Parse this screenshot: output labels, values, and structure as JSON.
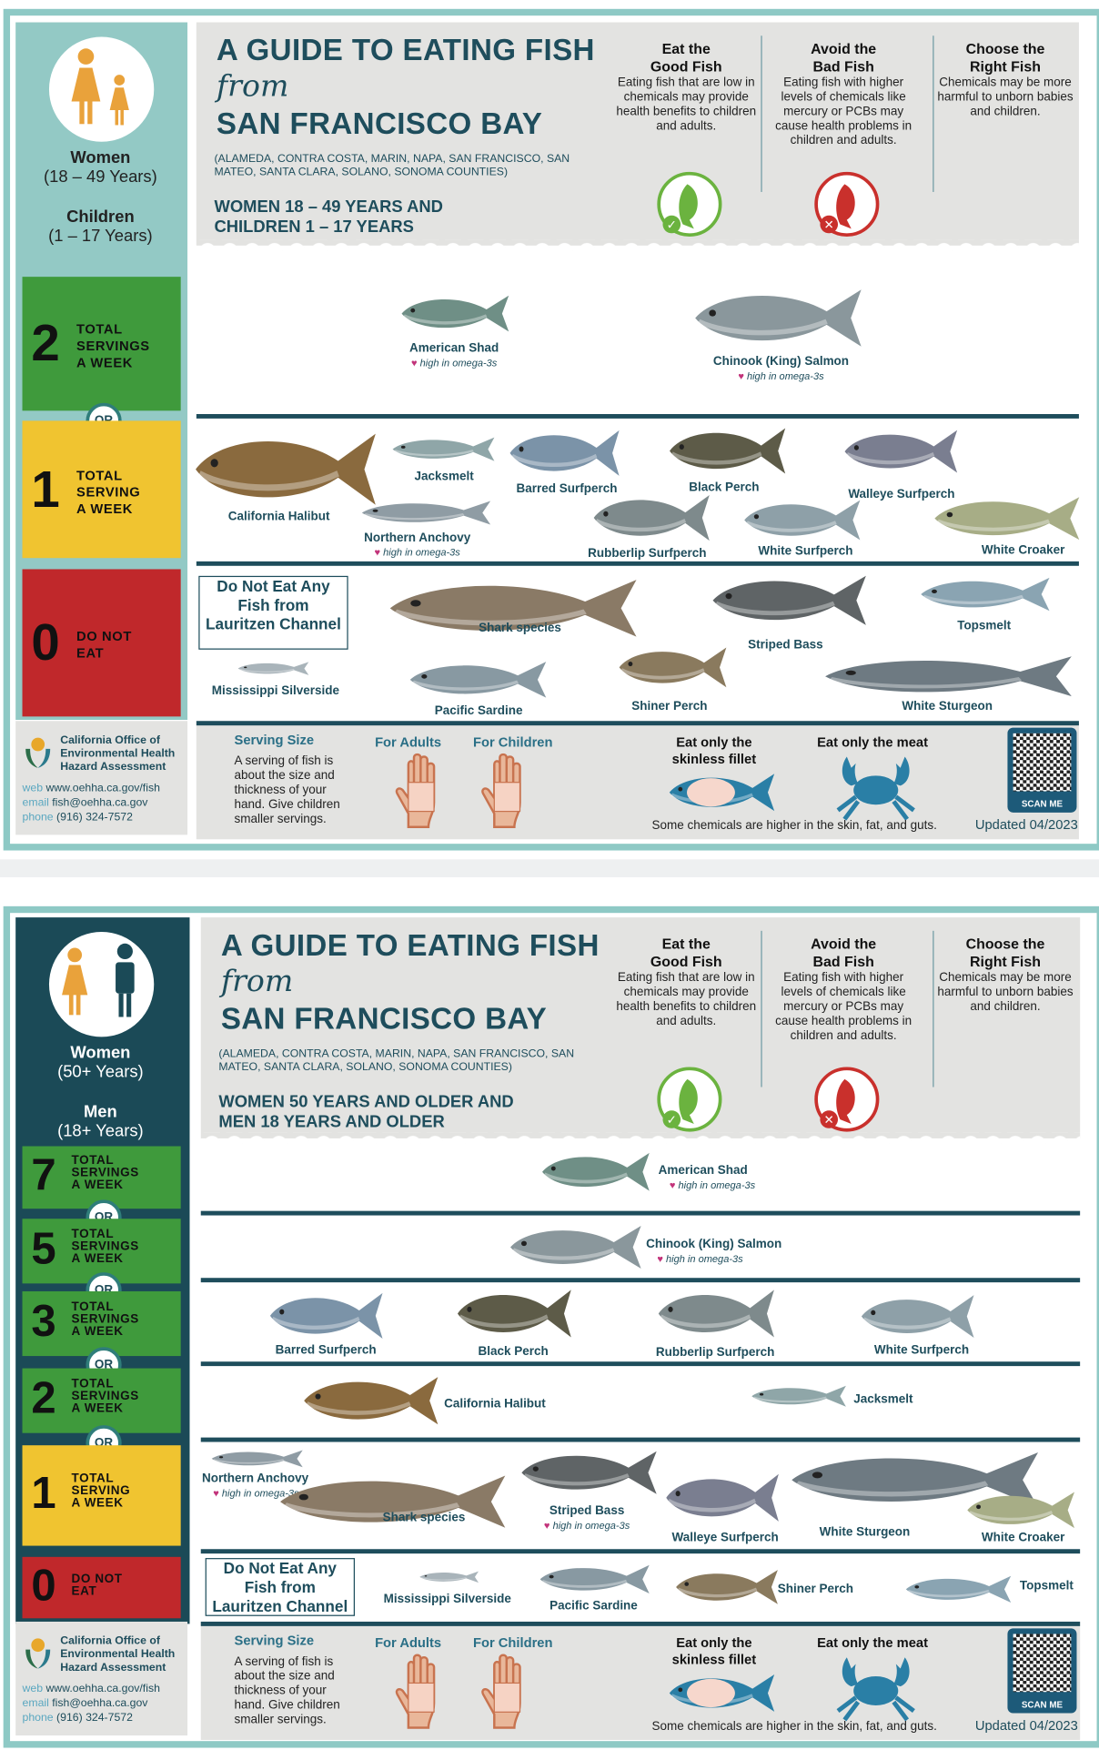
{
  "colors": {
    "teal_frame": "#8ec9c5",
    "navy": "#1e4d5c",
    "green": "#3f9a3c",
    "yellow": "#f0c430",
    "red": "#c0282b",
    "gray": "#e3e3e1"
  },
  "header": {
    "title1": "A GUIDE TO EATING FISH",
    "title2": "from",
    "title3": "SAN FRANCISCO BAY",
    "counties": "(ALAMEDA, CONTRA COSTA, MARIN, NAPA, SAN FRANCISCO, SAN MATEO, SANTA CLARA, SOLANO, SONOMA COUNTIES)",
    "cols": [
      {
        "h1": "Eat the",
        "h2": "Good Fish",
        "text": "Eating fish that are low in chemicals may provide health benefits to children and adults.",
        "icon": "good-fish-check-icon"
      },
      {
        "h1": "Avoid the",
        "h2": "Bad Fish",
        "text": "Eating fish with higher levels of chemicals like mercury or PCBs may cause health problems in children and adults.",
        "icon": "bad-fish-x-icon"
      },
      {
        "h1": "Choose the",
        "h2": "Right Fish",
        "text": "Chemicals may be more harmful to unborn babies and children."
      }
    ]
  },
  "footer": {
    "org1": "California Office of",
    "org2": "Environmental Health",
    "org3": "Hazard Assessment",
    "web_label": "web",
    "web": "www.oehha.ca.gov/fish",
    "email_label": "email",
    "email": "fish@oehha.ca.gov",
    "phone_label": "phone",
    "phone": "(916) 324-7572",
    "serving_title": "Serving Size",
    "serving_text": "A serving of fish is about the size and thickness of your hand. Give children smaller servings.",
    "adults": "For Adults",
    "children": "For Children",
    "fillet1": "Eat only the",
    "fillet2": "skinless fillet",
    "meat": "Eat only the meat",
    "note": "Some chemicals are higher in the skin, fat, and guts.",
    "scan": "SCAN ME",
    "updated": "Updated 04/2023"
  },
  "omega": "high in omega-3s",
  "do_not_eat": [
    "Do Not Eat Any",
    "Fish from",
    "Lauritzen Channel"
  ],
  "or": "OR",
  "panels": [
    {
      "group1": "Women",
      "group1_age": "(18 – 49 Years)",
      "group2": "Children",
      "group2_age": "(1 – 17 Years)",
      "who1": "WOMEN 18 – 49 YEARS AND",
      "who2": "CHILDREN 1 – 17 YEARS",
      "servings": [
        {
          "n": "2",
          "l1": "TOTAL",
          "l2": "SERVINGS",
          "l3": "A WEEK",
          "color": "#3f9a3c"
        },
        {
          "n": "1",
          "l1": "TOTAL",
          "l2": "SERVING",
          "l3": "A WEEK",
          "color": "#f0c430"
        },
        {
          "n": "0",
          "l1": "DO NOT",
          "l2": "EAT",
          "l3": "",
          "color": "#c0282b"
        }
      ],
      "fish": [
        {
          "name": "American Shad",
          "omega": true,
          "color": "#6f8f86"
        },
        {
          "name": "Chinook (King) Salmon",
          "omega": true,
          "color": "#8a979c"
        },
        {
          "name": "California Halibut",
          "color": "#8a6a3e"
        },
        {
          "name": "Jacksmelt",
          "color": "#8fa6a8"
        },
        {
          "name": "Northern Anchovy",
          "omega": true,
          "color": "#8f9ca4"
        },
        {
          "name": "Barred Surfperch",
          "color": "#7b93a8"
        },
        {
          "name": "Rubberlip Surfperch",
          "color": "#7e8a8c"
        },
        {
          "name": "Black Perch",
          "color": "#5d5b48"
        },
        {
          "name": "White Surfperch",
          "color": "#8ea0a8"
        },
        {
          "name": "Walleye Surfperch",
          "color": "#7a7e90"
        },
        {
          "name": "White Croaker",
          "color": "#a7ad86"
        },
        {
          "name": "Mississippi Silverside",
          "color": "#a9b4ba"
        },
        {
          "name": "Shark species",
          "color": "#8a7a66"
        },
        {
          "name": "Pacific Sardine",
          "color": "#8899a2"
        },
        {
          "name": "Striped Bass",
          "color": "#5f6466"
        },
        {
          "name": "Shiner Perch",
          "color": "#8a7a5e"
        },
        {
          "name": "Topsmelt",
          "color": "#8aa4b2"
        },
        {
          "name": "White Sturgeon",
          "color": "#6e7a82"
        }
      ]
    },
    {
      "group1": "Women",
      "group1_age": "(50+ Years)",
      "group2": "Men",
      "group2_age": "(18+ Years)",
      "who1": "WOMEN 50 YEARS AND OLDER AND",
      "who2": "MEN 18 YEARS AND OLDER",
      "servings": [
        {
          "n": "7",
          "l1": "TOTAL",
          "l2": "SERVINGS",
          "l3": "A WEEK",
          "color": "#3f9a3c"
        },
        {
          "n": "5",
          "l1": "TOTAL",
          "l2": "SERVINGS",
          "l3": "A WEEK",
          "color": "#3f9a3c"
        },
        {
          "n": "3",
          "l1": "TOTAL",
          "l2": "SERVINGS",
          "l3": "A WEEK",
          "color": "#3f9a3c"
        },
        {
          "n": "2",
          "l1": "TOTAL",
          "l2": "SERVINGS",
          "l3": "A WEEK",
          "color": "#3f9a3c"
        },
        {
          "n": "1",
          "l1": "TOTAL",
          "l2": "SERVING",
          "l3": "A WEEK",
          "color": "#f0c430"
        },
        {
          "n": "0",
          "l1": "DO NOT",
          "l2": "EAT",
          "l3": "",
          "color": "#c0282b"
        }
      ],
      "fish": [
        {
          "name": "American Shad",
          "omega": true,
          "color": "#6f8f86"
        },
        {
          "name": "Chinook (King) Salmon",
          "omega": true,
          "color": "#8a979c"
        },
        {
          "name": "Barred Surfperch",
          "color": "#7b93a8"
        },
        {
          "name": "Black Perch",
          "color": "#5d5b48"
        },
        {
          "name": "Rubberlip Surfperch",
          "color": "#7e8a8c"
        },
        {
          "name": "White Surfperch",
          "color": "#8ea0a8"
        },
        {
          "name": "California Halibut",
          "color": "#8a6a3e"
        },
        {
          "name": "Jacksmelt",
          "color": "#8fa6a8"
        },
        {
          "name": "Northern Anchovy",
          "omega": true,
          "color": "#8f9ca4"
        },
        {
          "name": "Shark species",
          "color": "#8a7a66"
        },
        {
          "name": "Striped Bass",
          "omega": true,
          "color": "#5f6466"
        },
        {
          "name": "Walleye Surfperch",
          "color": "#7a7e90"
        },
        {
          "name": "White Sturgeon",
          "color": "#6e7a82"
        },
        {
          "name": "White Croaker",
          "color": "#a7ad86"
        },
        {
          "name": "Mississippi Silverside",
          "color": "#a9b4ba"
        },
        {
          "name": "Pacific Sardine",
          "color": "#8899a2"
        },
        {
          "name": "Shiner Perch",
          "color": "#8a7a5e"
        },
        {
          "name": "Topsmelt",
          "color": "#8aa4b2"
        }
      ]
    }
  ]
}
